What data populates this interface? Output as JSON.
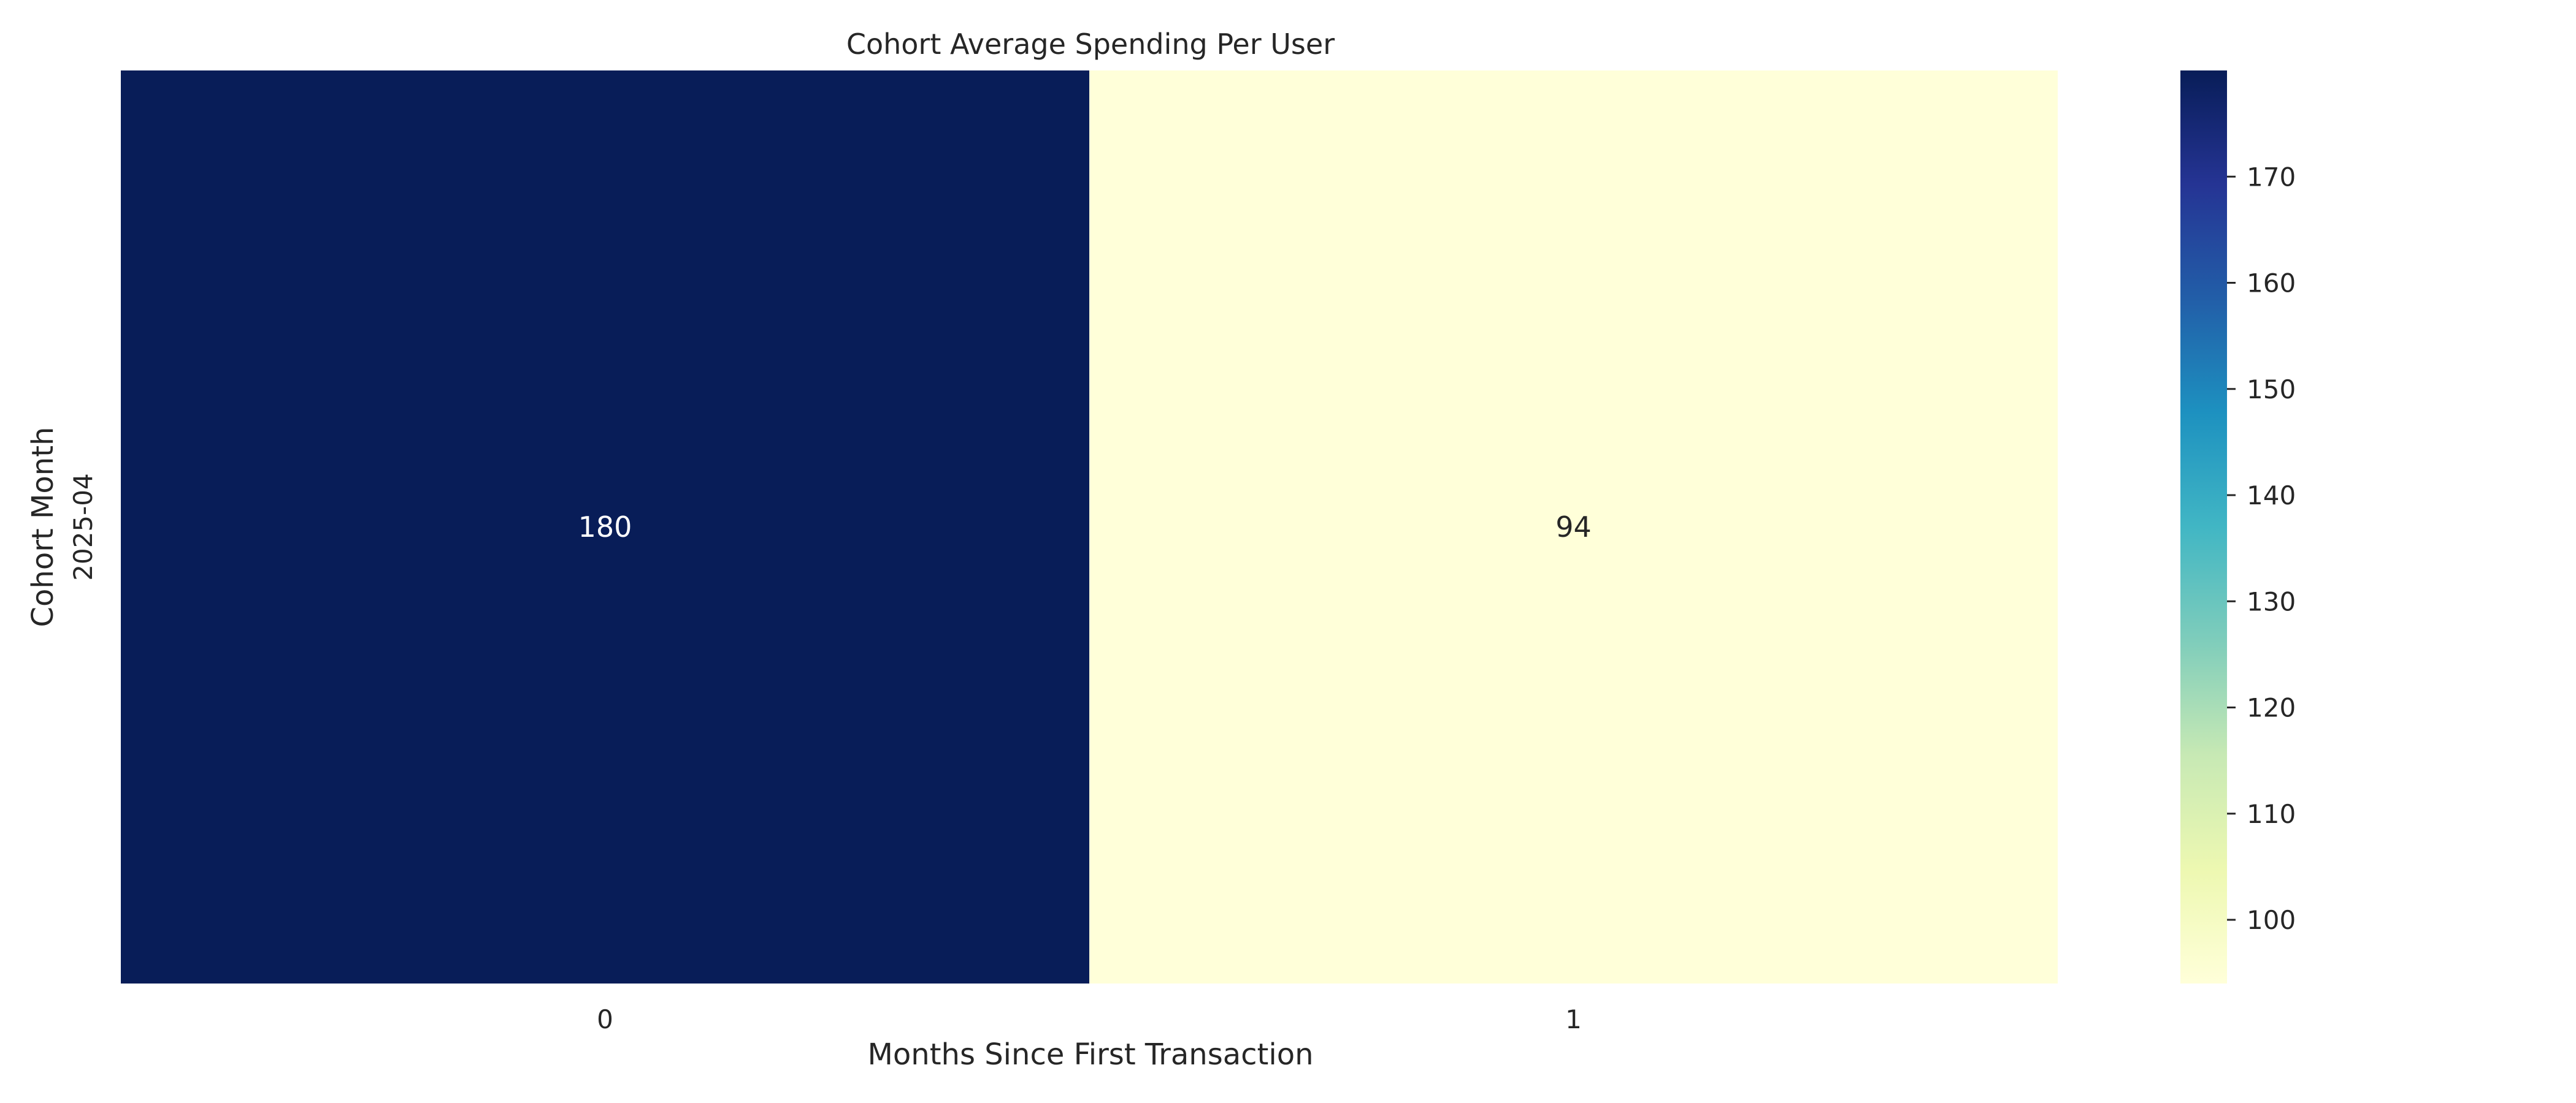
{
  "chart_data": {
    "type": "heatmap",
    "title": "Cohort Average Spending Per User",
    "xlabel": "Months Since First Transaction",
    "ylabel": "Cohort Month",
    "x_categories": [
      "0",
      "1"
    ],
    "y_categories": [
      "2025-04"
    ],
    "values": [
      [
        180,
        94
      ]
    ],
    "cell_labels": [
      [
        "180",
        "94"
      ]
    ],
    "colormap": "YlGnBu",
    "color_range": [
      94,
      180
    ],
    "colorbar_ticks": [
      100,
      110,
      120,
      130,
      140,
      150,
      160,
      170
    ],
    "colors": {
      "low": "#ffffd9",
      "high": "#081d58"
    }
  }
}
